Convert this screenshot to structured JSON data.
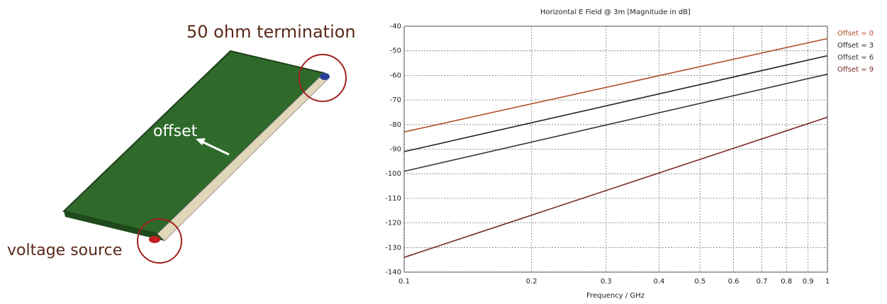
{
  "diagram": {
    "termination_label": "50 ohm termination",
    "offset_label": "offset",
    "source_label": "voltage source"
  },
  "chart_data": {
    "type": "line",
    "title": "Horizontal E Field @ 3m [Magnitude in dB]",
    "x_label": "Frequency / GHz",
    "xscale": "log",
    "grid": true,
    "legend": "right",
    "x": [
      0.1,
      1
    ],
    "xlim": [
      0.1,
      1
    ],
    "xticks": [
      0.1,
      0.2,
      0.3,
      0.4,
      0.5,
      0.6,
      0.7,
      0.8,
      0.9,
      1
    ],
    "ylim": [
      -140,
      -40
    ],
    "yticks": [
      -140,
      -130,
      -120,
      -110,
      -100,
      -90,
      -80,
      -70,
      -60,
      -50,
      -40
    ],
    "series": [
      {
        "name": "Offset = 0",
        "color": "#b0502a",
        "values": [
          -83,
          -45
        ]
      },
      {
        "name": "Offset = 3",
        "color": "#222222",
        "values": [
          -91,
          -52
        ]
      },
      {
        "name": "Offset = 6",
        "color": "#2e3a2a",
        "values": [
          -99,
          -59.5
        ]
      },
      {
        "name": "Offset = 9",
        "color": "#7a2a22",
        "values": [
          -134,
          -77
        ]
      }
    ]
  }
}
